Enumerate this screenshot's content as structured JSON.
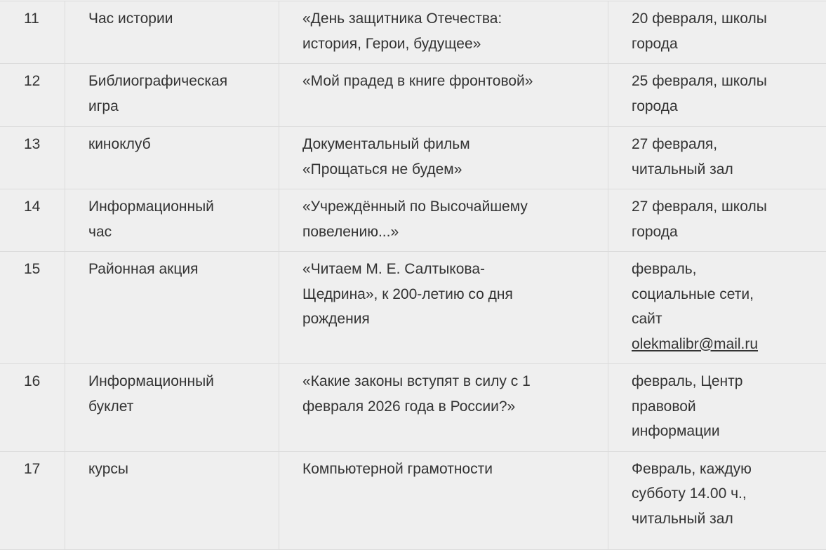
{
  "rows": [
    {
      "num": "11",
      "type": "Час истории",
      "title": "«День защитника Отечества:\nистория, Герои, будущее»",
      "when": "20 февраля, школы\nгорода"
    },
    {
      "num": "12",
      "type": "Библиографическая\nигра",
      "title": "«Мой прадед в книге фронтовой»",
      "when": "25 февраля, школы\n города"
    },
    {
      "num": "13",
      "type": "киноклуб",
      "title": "Документальный фильм\n«Прощаться не будем»",
      "when": "27 февраля,\nчитальный зал"
    },
    {
      "num": "14",
      "type": "Информационный\nчас",
      "title": "«Учреждённый по Высочайшему\nповелению...»",
      "when": "27 февраля, школы\nгорода"
    },
    {
      "num": "15",
      "type": "Районная акция",
      "title": "«Читаем М. Е. Салтыкова-\nЩедрина», к 200-летию со дня\nрождения",
      "when": "февраль,\nсоциальные  сети,\nсайт",
      "link": "olekmalibr@mail.ru"
    },
    {
      "num": "16",
      "type": "Информационный\nбуклет",
      "title": "«Какие законы вступят  в силу с 1\nфевраля 2026 года в России?»",
      "when": "февраль, Центр\nправовой\nинформации"
    },
    {
      "num": "17",
      "type": "курсы",
      "title": "Компьютерной грамотности",
      "when": "Февраль, каждую\nсубботу 14.00 ч.,\nчитальный зал"
    }
  ]
}
